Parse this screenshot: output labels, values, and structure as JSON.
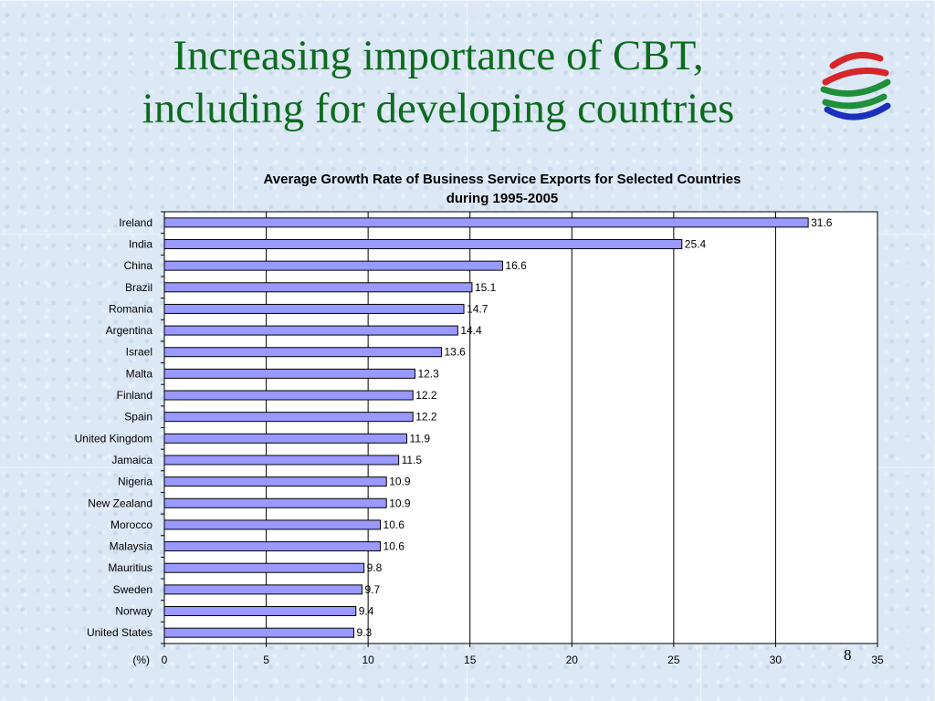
{
  "slide": {
    "title_line1": "Increasing importance of CBT,",
    "title_line2": "including for developing countries",
    "page_number": "8",
    "logo_icon": "wto-logo-icon"
  },
  "chart_data": {
    "type": "bar",
    "orientation": "horizontal",
    "title_line1": "Average Growth Rate of Business Service Exports for Selected Countries",
    "title_line2": "during 1995-2005",
    "xlabel": "(%)",
    "ylabel": "",
    "xlim": [
      0,
      35
    ],
    "xticks": [
      0,
      5,
      10,
      15,
      20,
      25,
      30,
      35
    ],
    "grid": true,
    "bar_color": "#9999ff",
    "categories": [
      "Ireland",
      "India",
      "China",
      "Brazil",
      "Romania",
      "Argentina",
      "Israel",
      "Malta",
      "Finland",
      "Spain",
      "United Kingdom",
      "Jamaica",
      "Nigeria",
      "New Zealand",
      "Morocco",
      "Malaysia",
      "Mauritius",
      "Sweden",
      "Norway",
      "United States"
    ],
    "values": [
      31.6,
      25.4,
      16.6,
      15.1,
      14.7,
      14.4,
      13.6,
      12.3,
      12.2,
      12.2,
      11.9,
      11.5,
      10.9,
      10.9,
      10.6,
      10.6,
      9.8,
      9.7,
      9.4,
      9.3
    ],
    "value_labels": [
      "31.6",
      "25.4",
      "16.6",
      "15.1",
      "14.7",
      "14.4",
      "13.6",
      "12.3",
      "12.2",
      "12.2",
      "11.9",
      "11.5",
      "10.9",
      "10.9",
      "10.6",
      "10.6",
      "9.8",
      "9.7",
      "9.4",
      "9.3"
    ]
  }
}
